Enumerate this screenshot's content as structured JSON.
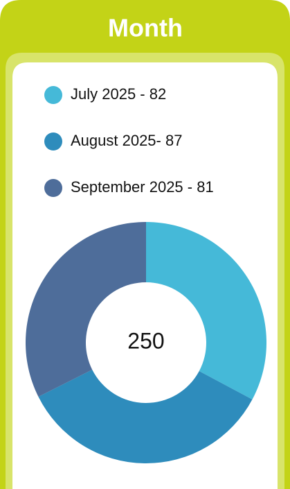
{
  "chart_data": {
    "type": "donut",
    "title": "Month",
    "categories": [
      "July 2025 - 82",
      "August 2025- 87",
      "September 2025 - 81"
    ],
    "values": [
      82,
      87,
      81
    ],
    "colors": [
      "#45b9d8",
      "#2e8cbc",
      "#4e6d9a"
    ],
    "center_label": "250"
  }
}
